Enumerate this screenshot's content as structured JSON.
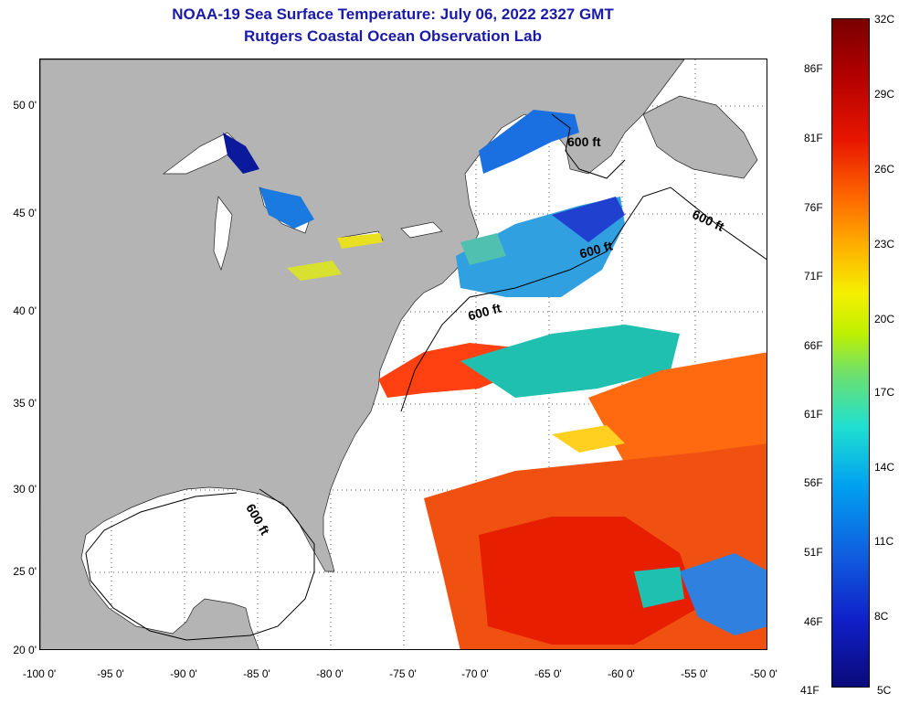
{
  "title": "NOAA-19 Sea Surface Temperature:  July 06, 2022 2327 GMT",
  "subtitle": "Rutgers Coastal Ocean Observation Lab",
  "map": {
    "lat_labels": [
      "50 0'",
      "45 0'",
      "40 0'",
      "35 0'",
      "30 0'",
      "25 0'",
      "20 0'"
    ],
    "lon_labels": [
      "-100 0'",
      "-95 0'",
      "-90 0'",
      "-85 0'",
      "-80 0'",
      "-75 0'",
      "-70 0'",
      "-65 0'",
      "-60 0'",
      "-55 0'",
      "-50 0'"
    ],
    "contour_labels": [
      "600 ft",
      "600 ft",
      "600 ft",
      "600 ft",
      "600 ft"
    ],
    "land_color": "#b4b4b4",
    "grid": true
  },
  "colorbar": {
    "celsius_labels": [
      "32C",
      "29C",
      "26C",
      "23C",
      "20C",
      "17C",
      "14C",
      "11C",
      "8C",
      "5C"
    ],
    "fahrenheit_labels": [
      "86F",
      "81F",
      "76F",
      "71F",
      "66F",
      "61F",
      "56F",
      "51F",
      "46F",
      "41F"
    ],
    "colors": [
      "#7a0000",
      "#e81500",
      "#ff6a00",
      "#f5ef00",
      "#6fe06a",
      "#20e0d0",
      "#00a0f0",
      "#1020c8",
      "#0a0a7a"
    ]
  }
}
